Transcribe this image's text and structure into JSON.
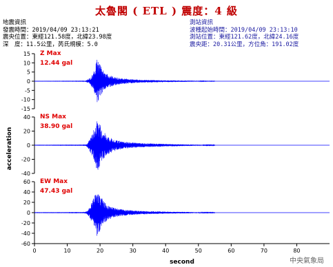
{
  "title": "太魯閣 ( ETL ) 震度：4 級",
  "event_info": {
    "heading": "地震資訊",
    "origin_time": "發震時間：2019/04/09 23:13:21",
    "epicenter": "震央位置：東經121.58度，北緯23.98度",
    "depth_magnitude": "深　度：11.5公里，芮氏規模：5.0"
  },
  "station_info": {
    "heading": "測站資訊",
    "wave_arrival": "波種起始時間：2019/04/09 23:13:10",
    "location": "測站位置：東經121.62度，北緯24.16度",
    "distance": "震央距：20.31公里，方位角：191.02度"
  },
  "agency": "中央氣象局",
  "colors": {
    "title": "#c00000",
    "max_label": "#e00000",
    "trace": "#0000ff",
    "baseline": "#0000ff",
    "station_info": "#1a1aa0"
  },
  "chart_data": {
    "type": "line",
    "xlabel": "second",
    "ylabel": "acceleration",
    "xlim": [
      0,
      90
    ],
    "xticks": [
      0,
      10,
      20,
      30,
      40,
      50,
      60,
      70,
      80
    ],
    "xtick_labels": [
      "0",
      "10",
      "20",
      "30",
      "40",
      "50",
      "60",
      "70",
      "80"
    ],
    "grid": false,
    "panels": [
      {
        "name": "Z",
        "max_label": "Z Max",
        "max_value": "12.44 gal",
        "ylim": [
          -15,
          15
        ],
        "yticks": [
          15,
          10,
          5,
          0,
          -5,
          -10,
          -15
        ],
        "ytick_labels": [
          "15",
          "10",
          "5",
          "0",
          "-5",
          "-10",
          "-15"
        ],
        "envelope": [
          [
            0,
            0.05
          ],
          [
            15,
            0.1
          ],
          [
            16,
            0.6
          ],
          [
            17,
            2.0
          ],
          [
            18,
            4.5
          ],
          [
            19,
            12.44
          ],
          [
            20,
            9
          ],
          [
            21,
            6
          ],
          [
            22,
            4
          ],
          [
            24,
            2.5
          ],
          [
            27,
            1.5
          ],
          [
            32,
            0.8
          ],
          [
            40,
            0.5
          ],
          [
            48,
            0.3
          ],
          [
            52,
            0.1
          ],
          [
            90,
            0.05
          ]
        ]
      },
      {
        "name": "NS",
        "max_label": "NS Max",
        "max_value": "38.90 gal",
        "ylim": [
          -40,
          40
        ],
        "yticks": [
          40,
          20,
          0,
          -20,
          -40
        ],
        "ytick_labels": [
          "40",
          "20",
          "0",
          "-20",
          "-40"
        ],
        "envelope": [
          [
            0,
            0.2
          ],
          [
            15,
            0.3
          ],
          [
            16,
            2
          ],
          [
            17,
            10
          ],
          [
            18,
            22
          ],
          [
            19,
            38.9
          ],
          [
            20,
            30
          ],
          [
            21,
            20
          ],
          [
            22,
            14
          ],
          [
            24,
            9
          ],
          [
            27,
            5
          ],
          [
            32,
            3
          ],
          [
            40,
            1.8
          ],
          [
            48,
            1
          ],
          [
            52,
            0.4
          ],
          [
            90,
            0.2
          ]
        ]
      },
      {
        "name": "EW",
        "max_label": "EW Max",
        "max_value": "47.43 gal",
        "ylim": [
          -60,
          60
        ],
        "yticks": [
          60,
          40,
          20,
          0,
          -20,
          -40,
          -60
        ],
        "ytick_labels": [
          "60",
          "40",
          "20",
          "0",
          "-20",
          "-40",
          "-60"
        ],
        "envelope": [
          [
            0,
            0.3
          ],
          [
            15,
            0.4
          ],
          [
            16,
            3
          ],
          [
            17,
            12
          ],
          [
            18,
            28
          ],
          [
            19,
            47.43
          ],
          [
            20,
            36
          ],
          [
            21,
            24
          ],
          [
            22,
            16
          ],
          [
            24,
            10
          ],
          [
            27,
            6
          ],
          [
            32,
            3.5
          ],
          [
            40,
            2
          ],
          [
            48,
            1.2
          ],
          [
            52,
            0.5
          ],
          [
            90,
            0.3
          ]
        ]
      }
    ]
  }
}
